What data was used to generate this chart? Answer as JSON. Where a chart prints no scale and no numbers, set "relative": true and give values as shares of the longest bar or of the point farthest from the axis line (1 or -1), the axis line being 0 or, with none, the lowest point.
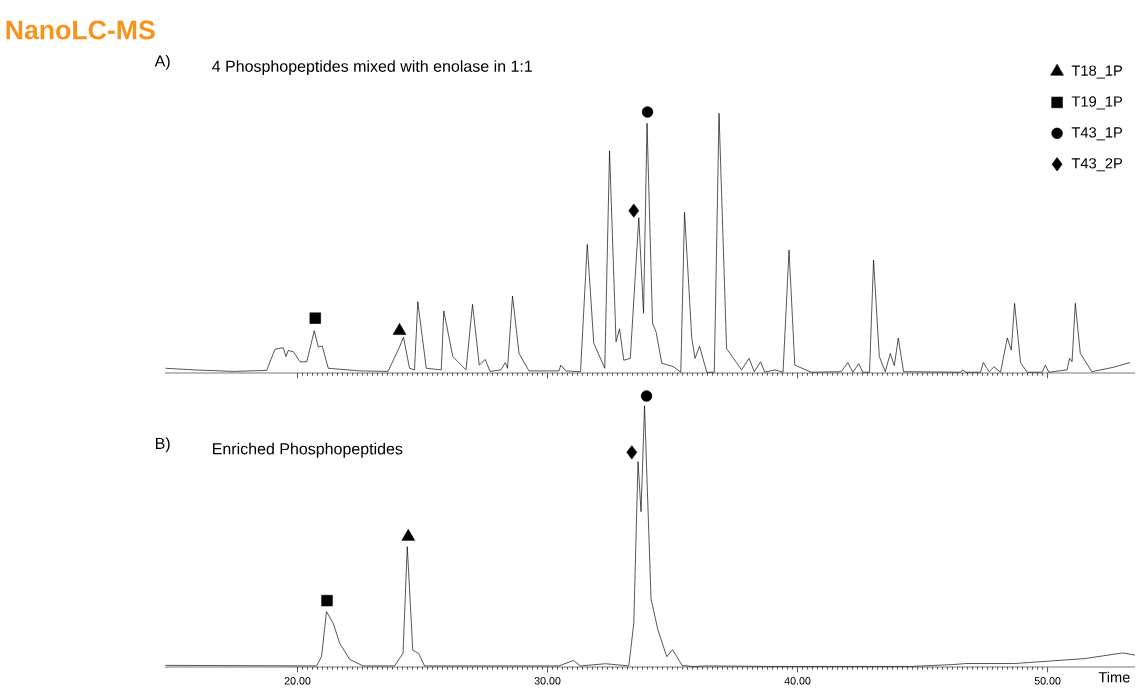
{
  "chart_data": [
    {
      "type": "line",
      "relative": true,
      "title": "NanoLC-MS",
      "subtitle": "4 Phosphopeptides mixed with enolase in 1:1",
      "annotations": [
        "A)"
      ],
      "xlim": [
        14.7,
        53.5
      ],
      "xticks": [
        20,
        30,
        40,
        50
      ],
      "tick_labels": false,
      "legend": "top right",
      "series": [
        {
          "color": "#000000",
          "marker": "none",
          "x": [
            14.72,
            15.85,
            17.44,
            18.77,
            18.9,
            19.1,
            19.43,
            19.54,
            19.63,
            19.83,
            20.1,
            20.37,
            20.5,
            20.67,
            20.83,
            20.99,
            21.23,
            22.49,
            23.62,
            24.08,
            24.24,
            24.48,
            24.68,
            24.81,
            25.15,
            25.75,
            25.85,
            26.21,
            26.74,
            27.0,
            27.27,
            27.51,
            27.7,
            28.14,
            28.31,
            28.4,
            28.6,
            28.86,
            29.26,
            30.46,
            30.53,
            30.73,
            31.32,
            31.59,
            31.85,
            32.29,
            32.48,
            32.74,
            32.88,
            33.05,
            33.31,
            33.65,
            33.84,
            33.98,
            34.2,
            34.34,
            34.57,
            35.04,
            35.33,
            35.48,
            35.77,
            35.9,
            36.08,
            36.37,
            36.67,
            36.86,
            37.16,
            37.76,
            38.06,
            38.27,
            38.52,
            38.69,
            39.09,
            39.42,
            39.66,
            39.89,
            40.55,
            41.75,
            42.01,
            42.21,
            42.45,
            42.61,
            42.88,
            43.04,
            43.27,
            43.51,
            43.71,
            43.87,
            44.03,
            44.24,
            46.53,
            46.59,
            46.73,
            47.32,
            47.43,
            47.66,
            47.86,
            48.12,
            48.39,
            48.55,
            48.68,
            48.92,
            49.18,
            49.78,
            49.91,
            50.05,
            50.78,
            50.88,
            50.98,
            51.11,
            51.31,
            51.77,
            52.64,
            53.3
          ],
          "values": [
            0.018,
            0.012,
            0.006,
            0.01,
            0.043,
            0.091,
            0.097,
            0.063,
            0.086,
            0.082,
            0.043,
            0.043,
            0.094,
            0.162,
            0.1,
            0.103,
            0.018,
            0.008,
            0.006,
            0.1,
            0.137,
            0.018,
            0.012,
            0.273,
            0.018,
            0.012,
            0.238,
            0.063,
            0.012,
            0.263,
            0.03,
            0.052,
            0.006,
            0.012,
            0.04,
            0.018,
            0.295,
            0.075,
            0.008,
            0.008,
            0.03,
            0.008,
            0.005,
            0.493,
            0.114,
            0.018,
            0.851,
            0.12,
            0.169,
            0.049,
            0.056,
            0.595,
            0.229,
            0.957,
            0.19,
            0.158,
            0.037,
            0.024,
            0.003,
            0.616,
            0.133,
            0.056,
            0.103,
            0.003,
            0.003,
            0.995,
            0.094,
            0.012,
            0.056,
            0.005,
            0.043,
            0.003,
            0.012,
            0.003,
            0.471,
            0.03,
            0.003,
            0.005,
            0.04,
            0.003,
            0.036,
            0.003,
            0.003,
            0.433,
            0.063,
            0.005,
            0.075,
            0.028,
            0.134,
            0.005,
            0.003,
            0.012,
            0.003,
            0.003,
            0.04,
            0.005,
            0.024,
            0.003,
            0.134,
            0.088,
            0.267,
            0.04,
            0.003,
            0.003,
            0.03,
            0.003,
            0.012,
            0.056,
            0.043,
            0.267,
            0.075,
            0.005,
            0.022,
            0.04
          ]
        },
        {
          "type": "scatter",
          "name": "T18_1P",
          "color": "#000000",
          "marker": "triangle",
          "x": [
            24.08
          ],
          "values": [
            0.162
          ]
        },
        {
          "type": "scatter",
          "name": "T19_1P",
          "color": "#000000",
          "marker": "square",
          "x": [
            20.71
          ],
          "values": [
            0.21
          ]
        },
        {
          "type": "scatter",
          "name": "T43_1P",
          "color": "#000000",
          "marker": "circle",
          "x": [
            34.0
          ],
          "values": [
            1.0
          ]
        },
        {
          "type": "scatter",
          "name": "T43_2P",
          "color": "#000000",
          "marker": "diamond",
          "x": [
            33.45
          ],
          "values": [
            0.622
          ]
        }
      ]
    },
    {
      "type": "line",
      "relative": true,
      "subtitle": "Enriched Phosphopeptides",
      "annotations": [
        "B)"
      ],
      "xlabel": "Time",
      "xlim": [
        14.7,
        53.5
      ],
      "xticks": [
        {
          "value": 20,
          "label": "20.00"
        },
        {
          "value": 30,
          "label": "30.00"
        },
        {
          "value": 40,
          "label": "40.00"
        },
        {
          "value": 50,
          "label": "50.00"
        }
      ],
      "series": [
        {
          "color": "#000000",
          "marker": "none",
          "x": [
            14.72,
            20.76,
            20.96,
            21.16,
            21.43,
            21.69,
            22.09,
            22.62,
            23.88,
            24.22,
            24.39,
            24.61,
            24.85,
            25.08,
            30.46,
            31.03,
            31.32,
            32.32,
            33.25,
            33.45,
            33.62,
            33.74,
            33.88,
            34.14,
            34.42,
            34.77,
            35.0,
            35.38,
            35.8,
            36.43,
            38.98,
            44.53,
            46.21,
            46.77,
            48.71,
            50.1,
            51.49,
            53.01,
            53.49
          ],
          "values": [
            0.006,
            0.004,
            0.038,
            0.204,
            0.161,
            0.087,
            0.028,
            0.004,
            0.004,
            0.05,
            0.444,
            0.062,
            0.05,
            0.004,
            0.004,
            0.024,
            0.004,
            0.012,
            0.004,
            0.161,
            0.758,
            0.573,
            0.964,
            0.251,
            0.135,
            0.038,
            0.064,
            0.006,
            0.002,
            0.004,
            0.002,
            0.002,
            0.009,
            0.013,
            0.013,
            0.022,
            0.031,
            0.052,
            0.044
          ]
        },
        {
          "type": "scatter",
          "color": "#000000",
          "marker": "triangle",
          "x": [
            24.43
          ],
          "values": [
            0.481
          ]
        },
        {
          "type": "scatter",
          "color": "#000000",
          "marker": "square",
          "x": [
            21.18
          ],
          "values": [
            0.245
          ]
        },
        {
          "type": "scatter",
          "color": "#000000",
          "marker": "circle",
          "x": [
            33.96
          ],
          "values": [
            1.0
          ]
        },
        {
          "type": "scatter",
          "color": "#000000",
          "marker": "diamond",
          "x": [
            33.37
          ],
          "values": [
            0.792
          ]
        }
      ]
    }
  ]
}
